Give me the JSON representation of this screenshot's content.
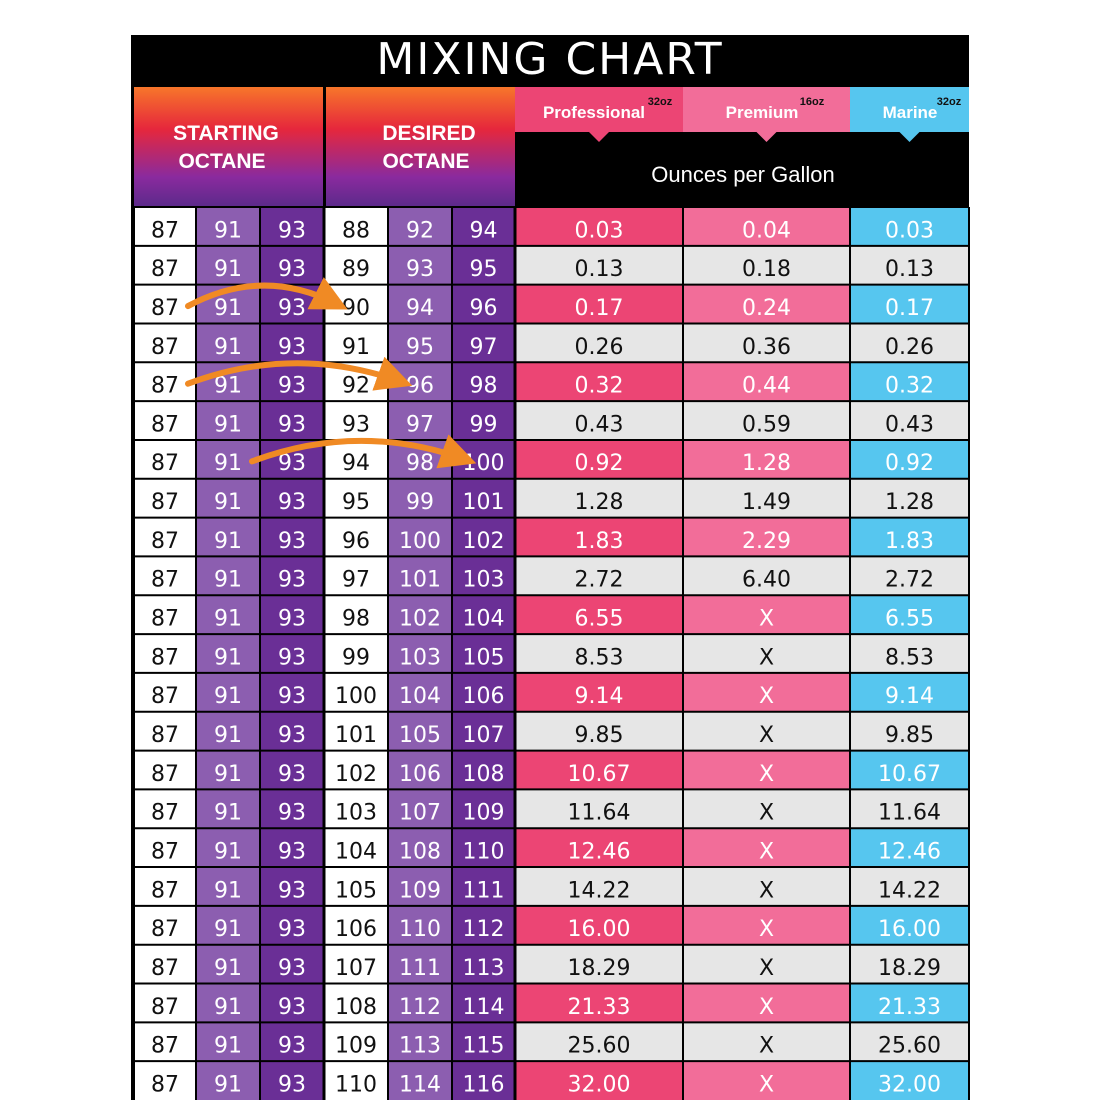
{
  "chart_data": {
    "type": "table",
    "title": "MIXING CHART",
    "headers": {
      "starting": [
        "STARTING",
        "OCTANE"
      ],
      "desired": [
        "DESIRED",
        "OCTANE"
      ],
      "units": "Ounces per Gallon",
      "products": [
        {
          "name": "Professional",
          "size": "32oz"
        },
        {
          "name": "Premium",
          "size": "16oz"
        },
        {
          "name": "Marine",
          "size": "32oz"
        }
      ]
    },
    "rows": [
      {
        "start": [
          "87",
          "91",
          "93"
        ],
        "desired": [
          "88",
          "92",
          "94"
        ],
        "professional": "0.03",
        "premium": "0.04",
        "marine": "0.03"
      },
      {
        "start": [
          "87",
          "91",
          "93"
        ],
        "desired": [
          "89",
          "93",
          "95"
        ],
        "professional": "0.13",
        "premium": "0.18",
        "marine": "0.13"
      },
      {
        "start": [
          "87",
          "91",
          "93"
        ],
        "desired": [
          "90",
          "94",
          "96"
        ],
        "professional": "0.17",
        "premium": "0.24",
        "marine": "0.17"
      },
      {
        "start": [
          "87",
          "91",
          "93"
        ],
        "desired": [
          "91",
          "95",
          "97"
        ],
        "professional": "0.26",
        "premium": "0.36",
        "marine": "0.26"
      },
      {
        "start": [
          "87",
          "91",
          "93"
        ],
        "desired": [
          "92",
          "96",
          "98"
        ],
        "professional": "0.32",
        "premium": "0.44",
        "marine": "0.32"
      },
      {
        "start": [
          "87",
          "91",
          "93"
        ],
        "desired": [
          "93",
          "97",
          "99"
        ],
        "professional": "0.43",
        "premium": "0.59",
        "marine": "0.43"
      },
      {
        "start": [
          "87",
          "91",
          "93"
        ],
        "desired": [
          "94",
          "98",
          "100"
        ],
        "professional": "0.92",
        "premium": "1.28",
        "marine": "0.92"
      },
      {
        "start": [
          "87",
          "91",
          "93"
        ],
        "desired": [
          "95",
          "99",
          "101"
        ],
        "professional": "1.28",
        "premium": "1.49",
        "marine": "1.28"
      },
      {
        "start": [
          "87",
          "91",
          "93"
        ],
        "desired": [
          "96",
          "100",
          "102"
        ],
        "professional": "1.83",
        "premium": "2.29",
        "marine": "1.83"
      },
      {
        "start": [
          "87",
          "91",
          "93"
        ],
        "desired": [
          "97",
          "101",
          "103"
        ],
        "professional": "2.72",
        "premium": "6.40",
        "marine": "2.72"
      },
      {
        "start": [
          "87",
          "91",
          "93"
        ],
        "desired": [
          "98",
          "102",
          "104"
        ],
        "professional": "6.55",
        "premium": "X",
        "marine": "6.55"
      },
      {
        "start": [
          "87",
          "91",
          "93"
        ],
        "desired": [
          "99",
          "103",
          "105"
        ],
        "professional": "8.53",
        "premium": "X",
        "marine": "8.53"
      },
      {
        "start": [
          "87",
          "91",
          "93"
        ],
        "desired": [
          "100",
          "104",
          "106"
        ],
        "professional": "9.14",
        "premium": "X",
        "marine": "9.14"
      },
      {
        "start": [
          "87",
          "91",
          "93"
        ],
        "desired": [
          "101",
          "105",
          "107"
        ],
        "professional": "9.85",
        "premium": "X",
        "marine": "9.85"
      },
      {
        "start": [
          "87",
          "91",
          "93"
        ],
        "desired": [
          "102",
          "106",
          "108"
        ],
        "professional": "10.67",
        "premium": "X",
        "marine": "10.67"
      },
      {
        "start": [
          "87",
          "91",
          "93"
        ],
        "desired": [
          "103",
          "107",
          "109"
        ],
        "professional": "11.64",
        "premium": "X",
        "marine": "11.64"
      },
      {
        "start": [
          "87",
          "91",
          "93"
        ],
        "desired": [
          "104",
          "108",
          "110"
        ],
        "professional": "12.46",
        "premium": "X",
        "marine": "12.46"
      },
      {
        "start": [
          "87",
          "91",
          "93"
        ],
        "desired": [
          "105",
          "109",
          "111"
        ],
        "professional": "14.22",
        "premium": "X",
        "marine": "14.22"
      },
      {
        "start": [
          "87",
          "91",
          "93"
        ],
        "desired": [
          "106",
          "110",
          "112"
        ],
        "professional": "16.00",
        "premium": "X",
        "marine": "16.00"
      },
      {
        "start": [
          "87",
          "91",
          "93"
        ],
        "desired": [
          "107",
          "111",
          "113"
        ],
        "professional": "18.29",
        "premium": "X",
        "marine": "18.29"
      },
      {
        "start": [
          "87",
          "91",
          "93"
        ],
        "desired": [
          "108",
          "112",
          "114"
        ],
        "professional": "21.33",
        "premium": "X",
        "marine": "21.33"
      },
      {
        "start": [
          "87",
          "91",
          "93"
        ],
        "desired": [
          "109",
          "113",
          "115"
        ],
        "professional": "25.60",
        "premium": "X",
        "marine": "25.60"
      },
      {
        "start": [
          "87",
          "91",
          "93"
        ],
        "desired": [
          "110",
          "114",
          "116"
        ],
        "professional": "32.00",
        "premium": "X",
        "marine": "32.00"
      }
    ],
    "arrows": [
      {
        "row": 2,
        "from": "91",
        "to": "90"
      },
      {
        "row": 4,
        "from": "91",
        "to": "96"
      },
      {
        "row": 6,
        "from": "93",
        "to": "100"
      }
    ]
  },
  "colors": {
    "title_bg": "#000000",
    "header_gradient": [
      "#f7762a",
      "#e6273c",
      "#8a2a9e",
      "#5b2a8a"
    ],
    "light_purple": "#8c5eb0",
    "dark_purple": "#6a2f96",
    "professional": "#ec4574",
    "premium": "#f26d99",
    "marine": "#56c6ef",
    "alt_row": "#e6e6e6",
    "arrow": "#f08a24"
  }
}
